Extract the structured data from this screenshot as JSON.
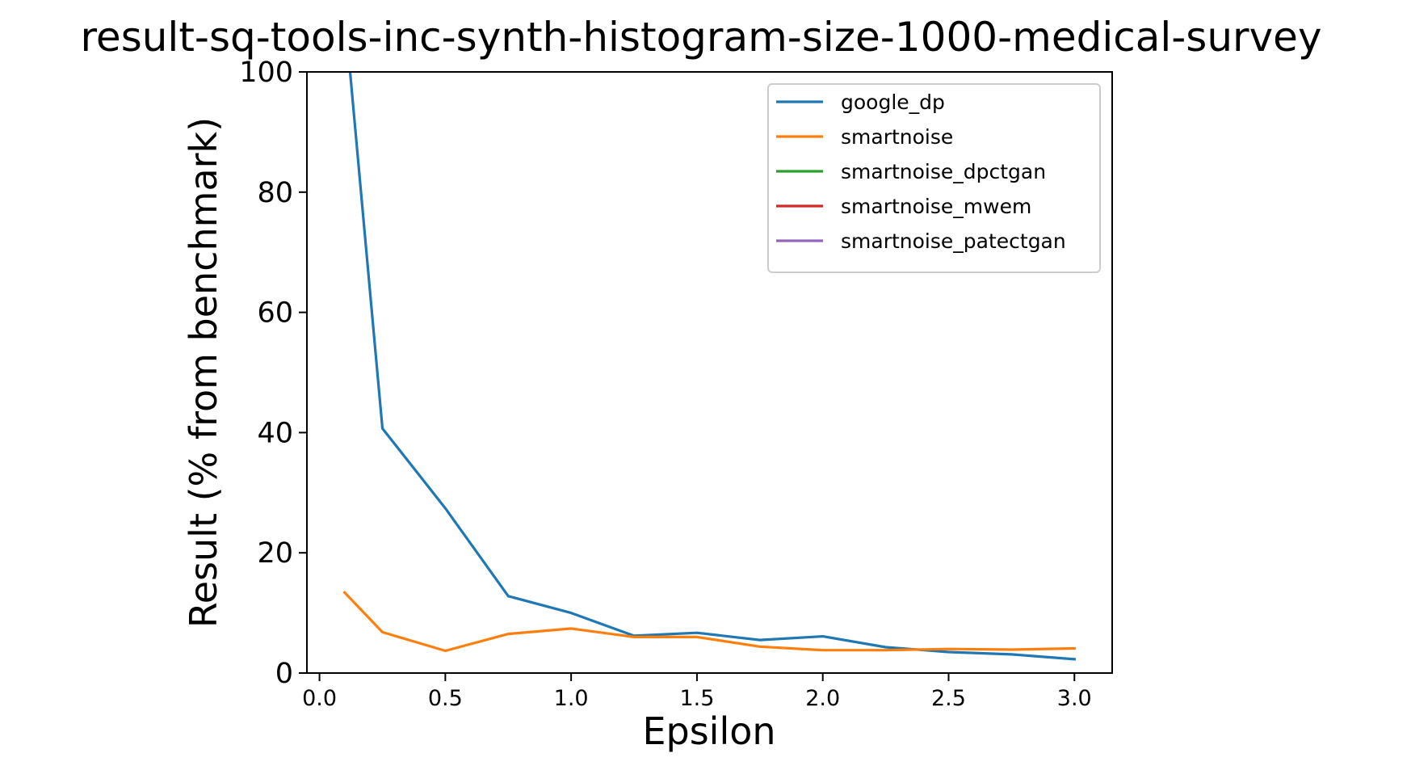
{
  "chart_data": {
    "type": "line",
    "title": "result-sq-tools-inc-synth-histogram-size-1000-medical-survey",
    "xlabel": "Epsilon",
    "ylabel": "Result (% from benchmark)",
    "xlim": [
      -0.05,
      3.15
    ],
    "ylim": [
      0,
      100
    ],
    "xticks": [
      "0.0",
      "0.5",
      "1.0",
      "1.5",
      "2.0",
      "2.5",
      "3.0"
    ],
    "xtick_values": [
      0,
      0.5,
      1.0,
      1.5,
      2.0,
      2.5,
      3.0
    ],
    "yticks": [
      "0",
      "20",
      "40",
      "60",
      "80",
      "100"
    ],
    "ytick_values": [
      0,
      20,
      40,
      60,
      80,
      100
    ],
    "grid": false,
    "legend_position": "top-right",
    "series": [
      {
        "name": "google_dp",
        "color": "#1f77b4",
        "x": [
          0.1,
          0.25,
          0.5,
          0.75,
          1.0,
          1.25,
          1.5,
          1.75,
          2.0,
          2.25,
          2.5,
          2.75,
          3.0
        ],
        "y": [
          110,
          40.7,
          27.4,
          12.8,
          10.0,
          6.2,
          6.7,
          5.5,
          6.1,
          4.3,
          3.5,
          3.1,
          2.3
        ]
      },
      {
        "name": "smartnoise",
        "color": "#ff7f0e",
        "x": [
          0.1,
          0.25,
          0.5,
          0.75,
          1.0,
          1.25,
          1.5,
          1.75,
          2.0,
          2.25,
          2.5,
          2.75,
          3.0
        ],
        "y": [
          13.4,
          6.8,
          3.7,
          6.5,
          7.4,
          6.0,
          6.0,
          4.4,
          3.8,
          3.8,
          4.0,
          3.9,
          4.1
        ]
      },
      {
        "name": "smartnoise_dpctgan",
        "color": "#2ca02c",
        "x": [],
        "y": []
      },
      {
        "name": "smartnoise_mwem",
        "color": "#d62728",
        "x": [],
        "y": []
      },
      {
        "name": "smartnoise_patectgan",
        "color": "#9467bd",
        "x": [],
        "y": []
      }
    ]
  }
}
